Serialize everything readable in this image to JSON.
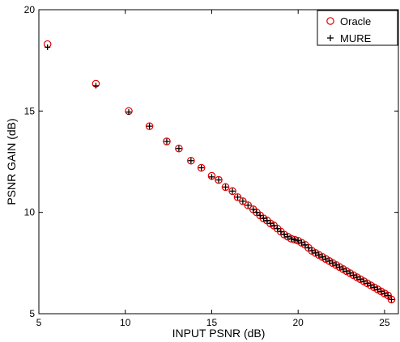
{
  "chart_data": {
    "type": "scatter",
    "xlabel": "INPUT PSNR (dB)",
    "ylabel": "PSNR GAIN (dB)",
    "xlim": [
      5,
      25.8
    ],
    "ylim": [
      5,
      20
    ],
    "xticks": [
      5,
      10,
      15,
      20,
      25
    ],
    "yticks": [
      5,
      10,
      15,
      20
    ],
    "grid": false,
    "legend_position": "top-right",
    "colors": {
      "oracle": "#e00000",
      "mure": "#000000"
    },
    "series": [
      {
        "name": "Oracle",
        "marker": "circle",
        "x": [
          5.5,
          8.3,
          10.2,
          11.4,
          12.4,
          13.1,
          13.8,
          14.4,
          15.0,
          15.4,
          15.8,
          16.2,
          16.5,
          16.8,
          17.1,
          17.4,
          17.6,
          17.8,
          18.0,
          18.2,
          18.4,
          18.6,
          18.8,
          19.0,
          19.2,
          19.4,
          19.6,
          19.8,
          20.0,
          20.2,
          20.4,
          20.6,
          20.8,
          21.0,
          21.2,
          21.4,
          21.6,
          21.8,
          22.0,
          22.2,
          22.4,
          22.6,
          22.8,
          23.0,
          23.2,
          23.4,
          23.6,
          23.8,
          24.0,
          24.2,
          24.4,
          24.6,
          24.8,
          25.0,
          25.2,
          25.4
        ],
        "y": [
          18.3,
          16.35,
          15.0,
          14.25,
          13.5,
          13.15,
          12.55,
          12.2,
          11.8,
          11.6,
          11.25,
          11.05,
          10.75,
          10.55,
          10.35,
          10.15,
          10.0,
          9.85,
          9.7,
          9.6,
          9.45,
          9.35,
          9.2,
          9.05,
          8.9,
          8.8,
          8.7,
          8.65,
          8.6,
          8.5,
          8.4,
          8.25,
          8.1,
          8.0,
          7.9,
          7.8,
          7.7,
          7.6,
          7.5,
          7.4,
          7.3,
          7.2,
          7.1,
          7.0,
          6.9,
          6.8,
          6.7,
          6.6,
          6.5,
          6.4,
          6.3,
          6.2,
          6.1,
          6.0,
          5.9,
          5.7
        ]
      },
      {
        "name": "MURE",
        "marker": "plus",
        "x": [
          5.5,
          8.3,
          10.2,
          11.4,
          12.4,
          13.1,
          13.8,
          14.4,
          15.0,
          15.4,
          15.8,
          16.2,
          16.5,
          16.8,
          17.1,
          17.4,
          17.6,
          17.8,
          18.0,
          18.2,
          18.4,
          18.6,
          18.8,
          19.0,
          19.2,
          19.4,
          19.6,
          19.8,
          20.0,
          20.2,
          20.4,
          20.6,
          20.8,
          21.0,
          21.2,
          21.4,
          21.6,
          21.8,
          22.0,
          22.2,
          22.4,
          22.6,
          22.8,
          23.0,
          23.2,
          23.4,
          23.6,
          23.8,
          24.0,
          24.2,
          24.4,
          24.6,
          24.8,
          25.0,
          25.2,
          25.4
        ],
        "y": [
          18.15,
          16.25,
          14.95,
          14.25,
          13.5,
          13.15,
          12.55,
          12.2,
          11.75,
          11.6,
          11.25,
          11.05,
          10.75,
          10.55,
          10.35,
          10.15,
          10.0,
          9.85,
          9.7,
          9.6,
          9.45,
          9.35,
          9.2,
          9.05,
          8.9,
          8.8,
          8.7,
          8.65,
          8.6,
          8.5,
          8.4,
          8.25,
          8.1,
          8.0,
          7.9,
          7.8,
          7.7,
          7.6,
          7.5,
          7.4,
          7.3,
          7.2,
          7.1,
          7.0,
          6.9,
          6.8,
          6.7,
          6.6,
          6.5,
          6.4,
          6.3,
          6.2,
          6.1,
          6.0,
          5.9,
          5.7
        ]
      }
    ]
  }
}
